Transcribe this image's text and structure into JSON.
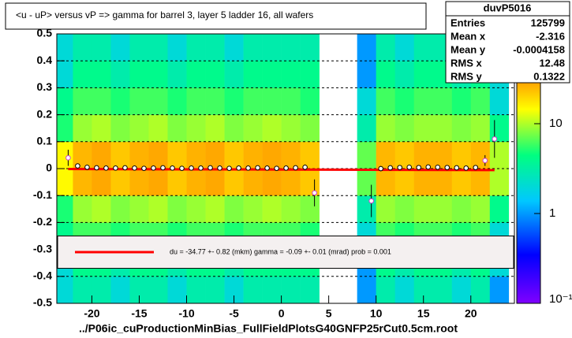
{
  "chart_data": {
    "type": "heatmap",
    "title": "<u - uP>       versus   vP =>  gamma for barrel 3, layer 5 ladder 16, all wafers",
    "x_label": "../P06ic_cuProductionMinBias_FullFieldPlotsG40GNFP25rCut0.5cm.root",
    "xlim": [
      -23.7,
      24.6
    ],
    "ylim": [
      -0.5,
      0.5
    ],
    "xticks": [
      -20,
      -15,
      -10,
      -5,
      0,
      5,
      10,
      15,
      20
    ],
    "yticks": [
      -0.5,
      -0.4,
      -0.3,
      -0.2,
      -0.1,
      0,
      0.1,
      0.2,
      0.3,
      0.4,
      0.5
    ],
    "grid": true,
    "log_color": true,
    "clim": [
      0.1,
      100
    ],
    "cticks": [
      {
        "value": 0.1,
        "label": "10⁻¹"
      },
      1,
      10
    ],
    "xbins": [
      -24,
      -22,
      -20,
      -18,
      -16,
      -14,
      -12,
      -10,
      -8,
      -6,
      -4,
      -2,
      0,
      2,
      4,
      6,
      8,
      10,
      12,
      14,
      16,
      18,
      20,
      22,
      24
    ],
    "ybins": [
      -0.5,
      -0.4,
      -0.3,
      -0.2,
      -0.1,
      0,
      0.1,
      0.2,
      0.3,
      0.4,
      0.5
    ],
    "z": [
      [
        2,
        3,
        3,
        2,
        3,
        3,
        2,
        3,
        3,
        2,
        3,
        3,
        3,
        3,
        null,
        null,
        1,
        3,
        2,
        3,
        3,
        2,
        3,
        1
      ],
      [
        2,
        4,
        4,
        3,
        4,
        4,
        3,
        4,
        4,
        3,
        4,
        4,
        4,
        4,
        null,
        null,
        1,
        4,
        3,
        4,
        4,
        3,
        4,
        2
      ],
      [
        4,
        6,
        6,
        5,
        6,
        6,
        5,
        6,
        6,
        5,
        6,
        6,
        6,
        5,
        null,
        null,
        2,
        6,
        5,
        6,
        6,
        5,
        6,
        2
      ],
      [
        5,
        9,
        10,
        8,
        9,
        10,
        8,
        9,
        10,
        8,
        9,
        10,
        9,
        8,
        null,
        null,
        3,
        9,
        8,
        9,
        9,
        8,
        9,
        4
      ],
      [
        15,
        25,
        28,
        22,
        26,
        28,
        22,
        26,
        28,
        22,
        26,
        28,
        26,
        22,
        null,
        null,
        7,
        25,
        22,
        26,
        26,
        22,
        25,
        10
      ],
      [
        15,
        25,
        28,
        22,
        26,
        28,
        22,
        26,
        28,
        22,
        26,
        28,
        26,
        22,
        null,
        null,
        7,
        25,
        22,
        26,
        26,
        22,
        25,
        10
      ],
      [
        5,
        9,
        10,
        8,
        9,
        10,
        8,
        9,
        10,
        8,
        9,
        10,
        9,
        8,
        null,
        null,
        3,
        9,
        8,
        9,
        9,
        8,
        9,
        4
      ],
      [
        4,
        6,
        6,
        5,
        6,
        6,
        5,
        6,
        6,
        5,
        6,
        6,
        6,
        5,
        null,
        null,
        2,
        6,
        5,
        6,
        6,
        5,
        6,
        2
      ],
      [
        2,
        4,
        4,
        3,
        4,
        4,
        3,
        4,
        4,
        3,
        4,
        4,
        4,
        4,
        null,
        null,
        1,
        4,
        3,
        4,
        4,
        3,
        4,
        2
      ],
      [
        2,
        3,
        3,
        2,
        3,
        3,
        2,
        3,
        3,
        2,
        3,
        3,
        3,
        3,
        null,
        null,
        1,
        3,
        2,
        3,
        3,
        2,
        3,
        1
      ]
    ],
    "profile": {
      "x": [
        -22.5,
        -21.5,
        -20.5,
        -19.5,
        -18.5,
        -17.5,
        -16.5,
        -15.5,
        -14.5,
        -13.5,
        -12.5,
        -11.5,
        -10.5,
        -9.5,
        -8.5,
        -7.5,
        -6.5,
        -5.5,
        -4.5,
        -3.5,
        -2.5,
        -1.5,
        -0.5,
        0.5,
        1.5,
        2.5,
        3.5,
        9.5,
        10.5,
        11.5,
        12.5,
        13.5,
        14.5,
        15.5,
        16.5,
        17.5,
        18.5,
        19.5,
        20.5,
        21.5,
        22.5
      ],
      "values": [
        0.04,
        0.01,
        0.005,
        0.003,
        0.002,
        0.002,
        0.003,
        0.002,
        0.001,
        0.002,
        0.003,
        0.002,
        0.001,
        0.002,
        0.002,
        0.003,
        0.002,
        0.001,
        0.002,
        0.002,
        0.003,
        0.002,
        0.001,
        0.002,
        0.003,
        0.005,
        -0.09,
        -0.12,
        0.0,
        0.003,
        0.004,
        0.005,
        0.004,
        0.006,
        0.005,
        0.004,
        0.003,
        0.002,
        0.004,
        0.03,
        0.11
      ],
      "errors": [
        0.03,
        0.008,
        0.004,
        0.003,
        0.003,
        0.003,
        0.003,
        0.003,
        0.003,
        0.003,
        0.003,
        0.003,
        0.003,
        0.003,
        0.003,
        0.003,
        0.003,
        0.003,
        0.003,
        0.003,
        0.003,
        0.003,
        0.003,
        0.003,
        0.004,
        0.01,
        0.05,
        0.06,
        0.01,
        0.004,
        0.003,
        0.003,
        0.003,
        0.003,
        0.003,
        0.003,
        0.003,
        0.004,
        0.005,
        0.02,
        0.07
      ]
    },
    "fit": {
      "x": [
        -22.5,
        22.5
      ],
      "values": [
        -0.0015,
        -0.0055
      ],
      "color": "#ff0000",
      "label": "du =  -34.77 +-  0.82 (mkm) gamma =   -0.09 +-  0.01 (mrad) prob = 0.001"
    },
    "stats": {
      "title": "duvP5016",
      "rows": [
        {
          "name": "Entries",
          "value": 125799
        },
        {
          "name": "Mean x",
          "value": -2.316
        },
        {
          "name": "Mean y",
          "value": -0.0004158
        },
        {
          "name": "RMS x",
          "value": 12.48
        },
        {
          "name": "RMS y",
          "value": 0.1322
        }
      ]
    }
  }
}
